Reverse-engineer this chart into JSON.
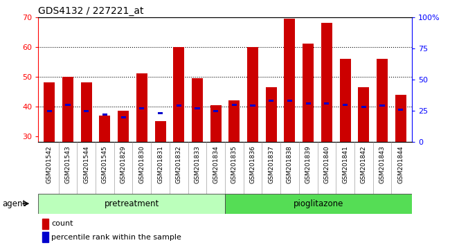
{
  "title": "GDS4132 / 227221_at",
  "samples": [
    "GSM201542",
    "GSM201543",
    "GSM201544",
    "GSM201545",
    "GSM201829",
    "GSM201830",
    "GSM201831",
    "GSM201832",
    "GSM201833",
    "GSM201834",
    "GSM201835",
    "GSM201836",
    "GSM201837",
    "GSM201838",
    "GSM201839",
    "GSM201840",
    "GSM201841",
    "GSM201842",
    "GSM201843",
    "GSM201844"
  ],
  "count_values": [
    48,
    50,
    48,
    37,
    38.5,
    51,
    35,
    60,
    49.5,
    40.5,
    42,
    60,
    46.5,
    69.5,
    61,
    68,
    56,
    46.5,
    56,
    44
  ],
  "pct_right_axis": [
    25,
    30,
    25,
    22,
    20,
    27,
    23,
    29,
    27,
    25,
    30,
    29,
    33,
    33,
    31,
    31,
    30,
    28,
    29,
    26
  ],
  "bar_color": "#cc0000",
  "pct_color": "#0000cc",
  "ylim_left": [
    28,
    70
  ],
  "ylim_right": [
    0,
    100
  ],
  "yticks_left": [
    30,
    40,
    50,
    60,
    70
  ],
  "yticks_right": [
    0,
    25,
    50,
    75,
    100
  ],
  "ytick_labels_right": [
    "0",
    "25",
    "50",
    "75",
    "100%"
  ],
  "n_pretreatment": 10,
  "n_pioglitazone": 10,
  "pretreatment_color": "#bbffbb",
  "pioglitazone_color": "#55dd55",
  "group_labels": [
    "pretreatment",
    "pioglitazone"
  ],
  "legend_count": "count",
  "legend_pct": "percentile rank within the sample",
  "agent_label": "agent",
  "bar_width": 0.6,
  "grid_color": "#000000",
  "xticklabel_bg": "#c8c8c8",
  "xticklabel_fontsize": 6.5,
  "ytick_fontsize": 8,
  "title_fontsize": 10
}
